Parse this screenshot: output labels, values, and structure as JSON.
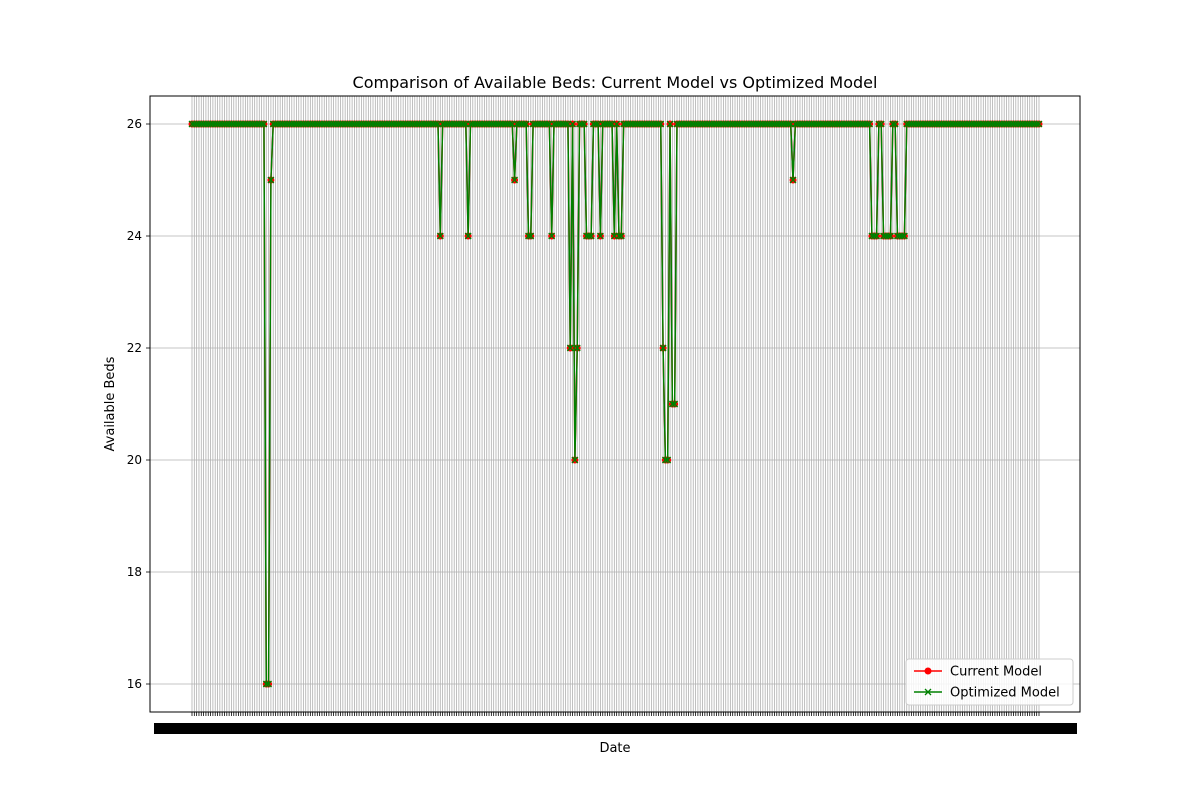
{
  "chart_data": {
    "type": "line",
    "title": "Comparison of Available Beds: Current Model vs Optimized Model",
    "xlabel": "Date",
    "ylabel": "Available Beds",
    "ylim": [
      15.5,
      26.5
    ],
    "yticks": [
      16,
      18,
      20,
      22,
      24,
      26
    ],
    "grid": true,
    "legend_position": "lower-right",
    "x_count": 366,
    "x_tick_labels_legible": false,
    "y_default": 26,
    "y_overrides": [
      [
        31,
        26
      ],
      [
        32,
        16
      ],
      [
        33,
        16
      ],
      [
        34,
        25
      ],
      [
        106,
        26
      ],
      [
        107,
        24
      ],
      [
        108,
        26
      ],
      [
        118,
        26
      ],
      [
        119,
        24
      ],
      [
        120,
        26
      ],
      [
        138,
        26
      ],
      [
        139,
        25
      ],
      [
        140,
        26
      ],
      [
        144,
        26
      ],
      [
        145,
        24
      ],
      [
        146,
        24
      ],
      [
        147,
        26
      ],
      [
        154,
        26
      ],
      [
        155,
        24
      ],
      [
        156,
        26
      ],
      [
        162,
        26
      ],
      [
        163,
        22
      ],
      [
        164,
        26
      ],
      [
        165,
        20
      ],
      [
        166,
        22
      ],
      [
        167,
        26
      ],
      [
        169,
        26
      ],
      [
        170,
        24
      ],
      [
        171,
        24
      ],
      [
        172,
        24
      ],
      [
        173,
        26
      ],
      [
        175,
        26
      ],
      [
        176,
        24
      ],
      [
        177,
        26
      ],
      [
        181,
        26
      ],
      [
        182,
        24
      ],
      [
        183,
        26
      ],
      [
        184,
        24
      ],
      [
        185,
        24
      ],
      [
        186,
        26
      ],
      [
        202,
        26
      ],
      [
        203,
        22
      ],
      [
        204,
        20
      ],
      [
        205,
        20
      ],
      [
        206,
        26
      ],
      [
        207,
        21
      ],
      [
        208,
        21
      ],
      [
        209,
        26
      ],
      [
        258,
        26
      ],
      [
        259,
        25
      ],
      [
        260,
        26
      ],
      [
        292,
        26
      ],
      [
        293,
        24
      ],
      [
        294,
        24
      ],
      [
        295,
        24
      ],
      [
        296,
        26
      ],
      [
        297,
        26
      ],
      [
        298,
        24
      ],
      [
        299,
        24
      ],
      [
        300,
        24
      ],
      [
        301,
        24
      ],
      [
        302,
        26
      ],
      [
        303,
        26
      ],
      [
        304,
        24
      ],
      [
        305,
        24
      ],
      [
        306,
        24
      ],
      [
        307,
        24
      ],
      [
        308,
        26
      ]
    ],
    "series": [
      {
        "name": "Current Model",
        "color": "#ff0000",
        "marker": "circle"
      },
      {
        "name": "Optimized Model",
        "color": "#008000",
        "marker": "x"
      }
    ]
  }
}
